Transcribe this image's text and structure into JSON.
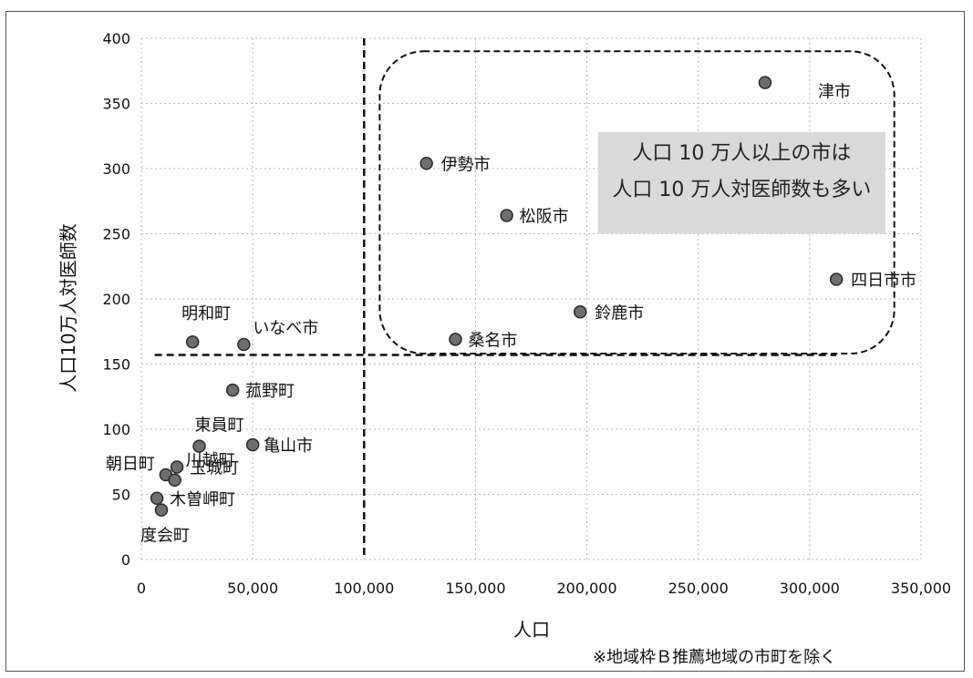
{
  "chart_data": {
    "type": "scatter",
    "xlabel": "人口",
    "ylabel": "人口10万人対医師数",
    "xlim": [
      0,
      350000
    ],
    "ylim": [
      0,
      400
    ],
    "x_ticks": [
      "0",
      "50,000",
      "100,000",
      "150,000",
      "200,000",
      "250,000",
      "300,000",
      "350,000"
    ],
    "y_ticks": [
      "0",
      "50",
      "100",
      "150",
      "200",
      "250",
      "300",
      "350",
      "400"
    ],
    "grid": true,
    "points": [
      {
        "label": "津市",
        "x": 280000,
        "y": 366
      },
      {
        "label": "伊勢市",
        "x": 128000,
        "y": 304
      },
      {
        "label": "松阪市",
        "x": 164000,
        "y": 264
      },
      {
        "label": "四日市市",
        "x": 312000,
        "y": 215
      },
      {
        "label": "鈴鹿市",
        "x": 197000,
        "y": 190
      },
      {
        "label": "桑名市",
        "x": 141000,
        "y": 169
      },
      {
        "label": "明和町",
        "x": 23000,
        "y": 167
      },
      {
        "label": "いなべ市",
        "x": 46000,
        "y": 165
      },
      {
        "label": "菰野町",
        "x": 41000,
        "y": 130
      },
      {
        "label": "亀山市",
        "x": 50000,
        "y": 88
      },
      {
        "label": "東員町",
        "x": 26000,
        "y": 87
      },
      {
        "label": "玉城町",
        "x": 16000,
        "y": 71
      },
      {
        "label": "朝日町",
        "x": 11000,
        "y": 65
      },
      {
        "label": "川越町",
        "x": 15000,
        "y": 61
      },
      {
        "label": "木曽岬町",
        "x": 7000,
        "y": 47
      },
      {
        "label": "度会町",
        "x": 9000,
        "y": 38
      }
    ],
    "reference_lines": {
      "x": 100000,
      "y": 157
    },
    "annotation": [
      "人口 10 万人以上の市は",
      "人口 10 万人対医師数も多い"
    ],
    "footnote": "※地域枠Ｂ推薦地域の市町を除く"
  },
  "colors": {
    "marker_fill": "#6e6e6e",
    "marker_stroke": "#2a2a2a",
    "grid": "#b8b8b8",
    "callout_bg": "#d9d9d9"
  }
}
